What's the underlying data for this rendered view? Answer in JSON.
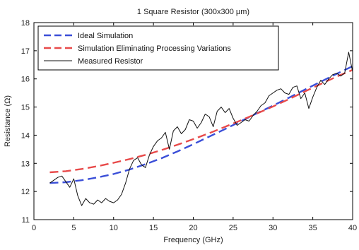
{
  "chart_data": {
    "type": "line",
    "title": "1 Square Resistor (300x300 µm)",
    "xlabel": "Frequency (GHz)",
    "ylabel": "Resistance (Ω)",
    "xlim": [
      0,
      40
    ],
    "ylim": [
      11,
      18
    ],
    "xticks": [
      "0",
      "5",
      "10",
      "15",
      "20",
      "25",
      "30",
      "35",
      "40"
    ],
    "yticks": [
      "11",
      "12",
      "13",
      "14",
      "15",
      "16",
      "17",
      "18"
    ],
    "grid": false,
    "legend_position": "top-left",
    "series": [
      {
        "name": "Ideal Simulation",
        "style": "dashed",
        "color": "#3b4fd8",
        "x": [
          2,
          4,
          6,
          8,
          10,
          12,
          14,
          16,
          18,
          20,
          22,
          24,
          26,
          28,
          30,
          32,
          34,
          36,
          38,
          40
        ],
        "y": [
          12.3,
          12.33,
          12.4,
          12.5,
          12.62,
          12.78,
          12.97,
          13.18,
          13.42,
          13.68,
          13.95,
          14.22,
          14.5,
          14.78,
          15.05,
          15.33,
          15.62,
          15.9,
          16.18,
          16.45
        ]
      },
      {
        "name": "Simulation Eliminating Processing Variations",
        "style": "dashed",
        "color": "#e84a4a",
        "x": [
          2,
          4,
          6,
          8,
          10,
          12,
          14,
          16,
          18,
          20,
          22,
          24,
          26,
          28,
          30,
          32,
          34,
          36,
          38,
          40
        ],
        "y": [
          12.68,
          12.72,
          12.8,
          12.9,
          13.02,
          13.15,
          13.3,
          13.47,
          13.66,
          13.86,
          14.07,
          14.3,
          14.53,
          14.77,
          15.02,
          15.28,
          15.55,
          15.82,
          16.08,
          16.32
        ]
      },
      {
        "name": "Measured Resistor",
        "style": "solid",
        "color": "#111111",
        "x": [
          2,
          2.5,
          3,
          3.5,
          4,
          4.5,
          5,
          5.5,
          6,
          6.5,
          7,
          7.5,
          8,
          8.5,
          9,
          9.5,
          10,
          10.5,
          11,
          11.5,
          12,
          12.5,
          13,
          13.5,
          14,
          14.5,
          15,
          15.5,
          16,
          16.5,
          17,
          17.5,
          18,
          18.5,
          19,
          19.5,
          20,
          20.5,
          21,
          21.5,
          22,
          22.5,
          23,
          23.5,
          24,
          24.5,
          25,
          25.5,
          26,
          26.5,
          27,
          27.5,
          28,
          28.5,
          29,
          29.5,
          30,
          30.5,
          31,
          31.5,
          32,
          32.5,
          33,
          33.5,
          34,
          34.5,
          35,
          35.5,
          36,
          36.5,
          37,
          37.5,
          38,
          38.5,
          39,
          39.5,
          40
        ],
        "y": [
          12.3,
          12.4,
          12.5,
          12.55,
          12.35,
          12.15,
          12.45,
          11.85,
          11.5,
          11.75,
          11.6,
          11.55,
          11.7,
          11.6,
          11.75,
          11.65,
          11.6,
          11.7,
          11.9,
          12.3,
          12.8,
          13.1,
          13.2,
          12.95,
          12.85,
          13.3,
          13.6,
          13.8,
          13.9,
          14.1,
          13.5,
          14.15,
          14.3,
          14.05,
          14.2,
          14.55,
          14.5,
          14.25,
          14.45,
          14.75,
          14.65,
          14.3,
          14.85,
          15.0,
          14.8,
          14.95,
          14.6,
          14.35,
          14.45,
          14.55,
          14.5,
          14.7,
          14.85,
          15.05,
          15.15,
          15.4,
          15.5,
          15.6,
          15.65,
          15.5,
          15.45,
          15.7,
          15.75,
          15.3,
          15.5,
          14.95,
          15.35,
          15.7,
          15.95,
          15.8,
          16.0,
          16.15,
          16.2,
          16.1,
          16.2,
          16.95,
          16.25
        ]
      }
    ]
  }
}
